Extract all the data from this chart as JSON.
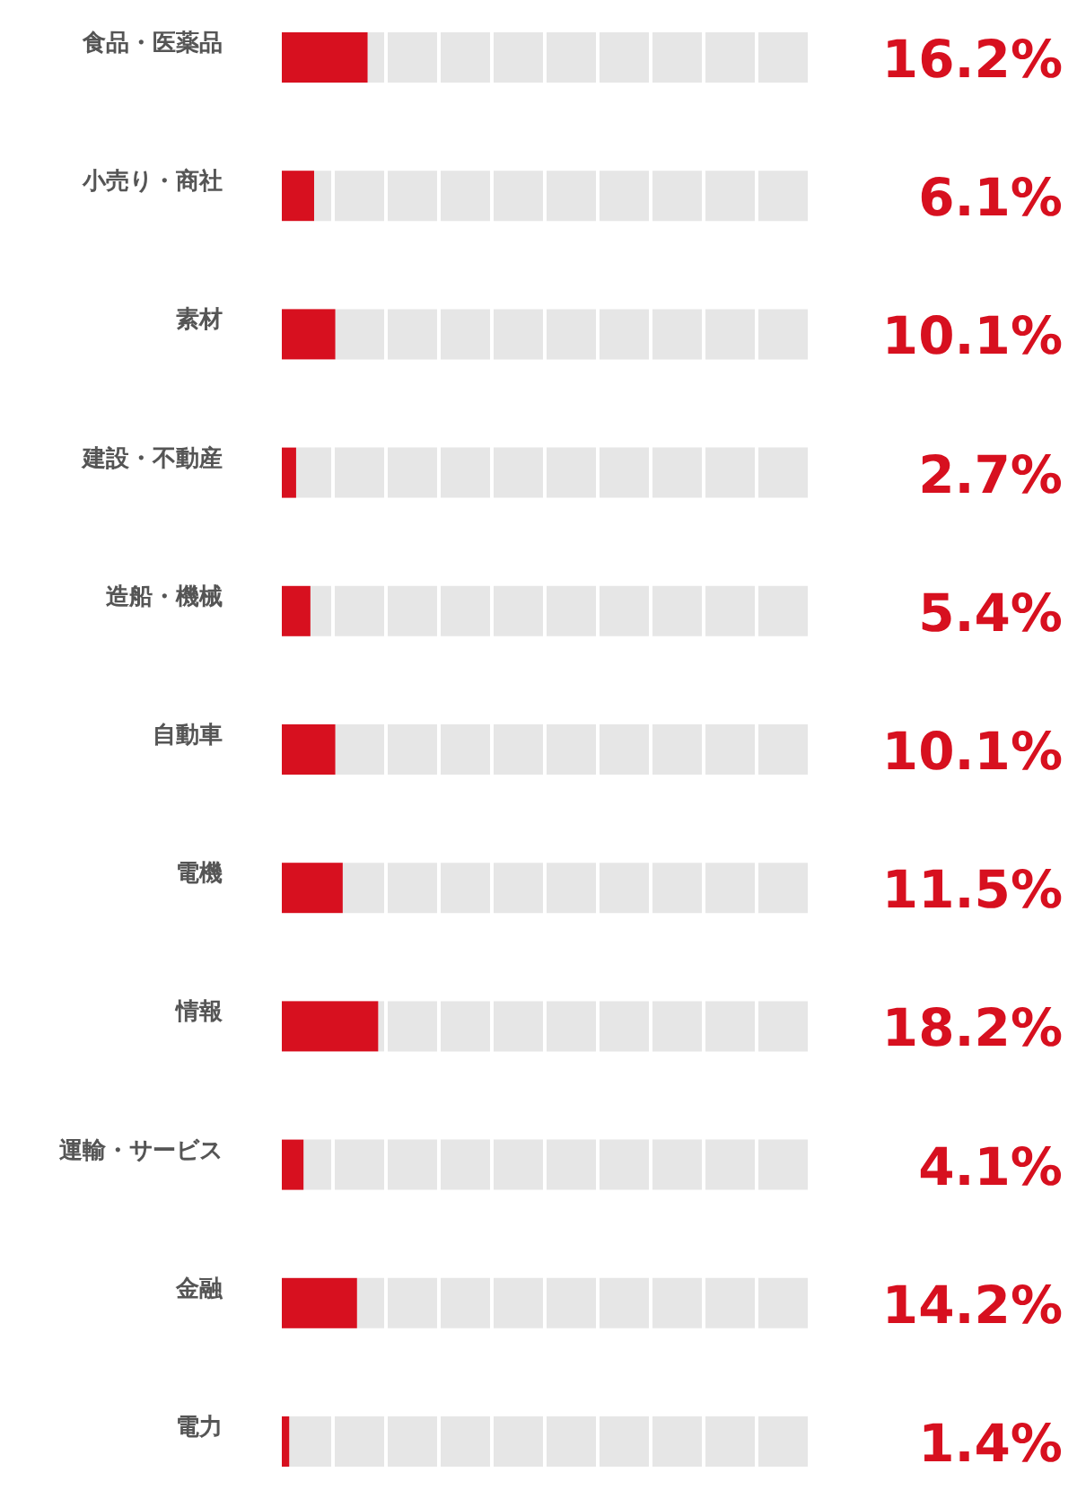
{
  "chart_data": {
    "type": "bar",
    "orientation": "horizontal",
    "categories": [
      "食品・医薬品",
      "小売り・商社",
      "素材",
      "建設・不動産",
      "造船・機械",
      "自動車",
      "電機",
      "情報",
      "運輸・サービス",
      "金融",
      "電力"
    ],
    "values": [
      16.2,
      6.1,
      10.1,
      2.7,
      5.4,
      10.1,
      11.5,
      18.2,
      4.1,
      14.2,
      1.4
    ],
    "value_labels": [
      "16.2%",
      "6.1%",
      "10.1%",
      "2.7%",
      "5.4%",
      "10.1%",
      "11.5%",
      "18.2%",
      "4.1%",
      "14.2%",
      "1.4%"
    ],
    "color": "#d7101f",
    "xlim": [
      0,
      100
    ],
    "tick_labels": "y"
  }
}
